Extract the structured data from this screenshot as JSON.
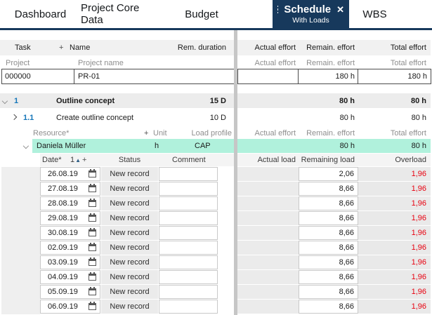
{
  "colors": {
    "accent_navy": "#17395C",
    "highlight_green": "#B0F1DC",
    "overload_red": "#E8000F",
    "task_number_blue": "#1576B9"
  },
  "tabs": {
    "items": [
      {
        "label": "Dashboard"
      },
      {
        "label": "Project Core Data"
      },
      {
        "label": "Budget"
      },
      {
        "label": "Schedule",
        "sublabel": "With Loads",
        "active": true
      },
      {
        "label": "WBS"
      }
    ],
    "close_glyph": "✕"
  },
  "task_table": {
    "header": {
      "task": "Task",
      "plus": "+",
      "name": "Name",
      "rem_duration": "Rem. duration",
      "actual_effort": "Actual effort",
      "remain_effort": "Remain. effort",
      "total_effort": "Total effort"
    },
    "subheader": {
      "project": "Project",
      "project_name": "Project name",
      "actual_effort": "Actual effort",
      "remain_effort": "Remain. effort",
      "total_effort": "Total effort"
    },
    "project_row": {
      "id": "000000",
      "name": "PR-01",
      "actual_effort": "",
      "remain_effort": "180 h",
      "total_effort": "180 h"
    },
    "rows": [
      {
        "number": "1",
        "name": "Outline concept",
        "rem_duration": "15 D",
        "actual": "",
        "remain": "80 h",
        "total": "80 h"
      },
      {
        "number": "1.1",
        "name": "Create outline concept",
        "rem_duration": "10 D",
        "actual": "",
        "remain": "80 h",
        "total": "80 h"
      }
    ]
  },
  "resource_section": {
    "header": {
      "resource": "Resource*",
      "plus": "+",
      "unit": "Unit",
      "load_profile": "Load profile",
      "actual_effort": "Actual effort",
      "remain_effort": "Remain. effort",
      "total_effort": "Total effort"
    },
    "row": {
      "name": "Daniela Müller",
      "unit": "h",
      "load_profile": "CAP",
      "actual": "",
      "remain": "80 h",
      "total": "80 h"
    }
  },
  "load_table": {
    "header": {
      "date": "Date*",
      "sort_number": "1",
      "sort_glyph": "▲",
      "plus": "+",
      "status": "Status",
      "comment": "Comment",
      "actual_load": "Actual load",
      "remaining_load": "Remaining load",
      "overload": "Overload"
    },
    "rows": [
      {
        "date": "26.08.19",
        "status": "New record",
        "comment": "",
        "actual": "",
        "remaining": "2,06",
        "overload": "1,96"
      },
      {
        "date": "27.08.19",
        "status": "New record",
        "comment": "",
        "actual": "",
        "remaining": "8,66",
        "overload": "1,96"
      },
      {
        "date": "28.08.19",
        "status": "New record",
        "comment": "",
        "actual": "",
        "remaining": "8,66",
        "overload": "1,96"
      },
      {
        "date": "29.08.19",
        "status": "New record",
        "comment": "",
        "actual": "",
        "remaining": "8,66",
        "overload": "1,96"
      },
      {
        "date": "30.08.19",
        "status": "New record",
        "comment": "",
        "actual": "",
        "remaining": "8,66",
        "overload": "1,96"
      },
      {
        "date": "02.09.19",
        "status": "New record",
        "comment": "",
        "actual": "",
        "remaining": "8,66",
        "overload": "1,96"
      },
      {
        "date": "03.09.19",
        "status": "New record",
        "comment": "",
        "actual": "",
        "remaining": "8,66",
        "overload": "1,96"
      },
      {
        "date": "04.09.19",
        "status": "New record",
        "comment": "",
        "actual": "",
        "remaining": "8,66",
        "overload": "1,96"
      },
      {
        "date": "05.09.19",
        "status": "New record",
        "comment": "",
        "actual": "",
        "remaining": "8,66",
        "overload": "1,96"
      },
      {
        "date": "06.09.19",
        "status": "New record",
        "comment": "",
        "actual": "",
        "remaining": "8,66",
        "overload": "1,96"
      }
    ]
  }
}
